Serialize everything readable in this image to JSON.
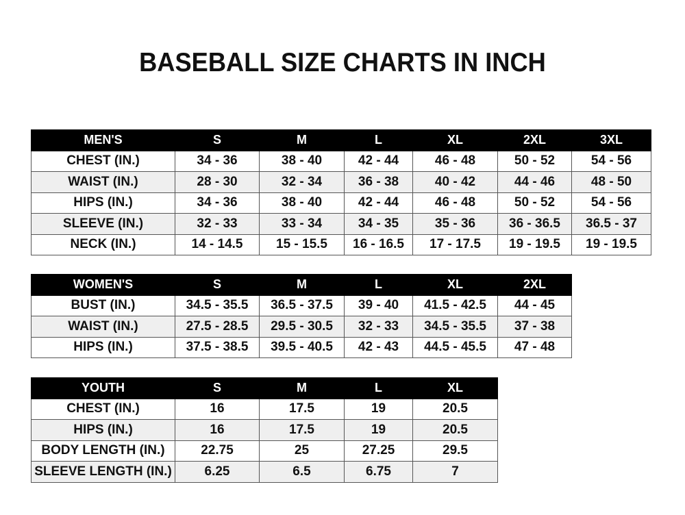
{
  "title": "BASEBALL SIZE CHARTS IN INCH",
  "men": {
    "header": [
      "MEN'S",
      "S",
      "M",
      "L",
      "XL",
      "2XL",
      "3XL"
    ],
    "rows": [
      [
        "CHEST (IN.)",
        "34 - 36",
        "38 - 40",
        "42 - 44",
        "46 - 48",
        "50 - 52",
        "54 - 56"
      ],
      [
        "WAIST (IN.)",
        "28 - 30",
        "32 - 34",
        "36 - 38",
        "40 - 42",
        "44 - 46",
        "48 - 50"
      ],
      [
        "HIPS (IN.)",
        "34 - 36",
        "38 - 40",
        "42 - 44",
        "46 - 48",
        "50 - 52",
        "54 - 56"
      ],
      [
        "SLEEVE (IN.)",
        "32 - 33",
        "33 - 34",
        "34 - 35",
        "35 - 36",
        "36 - 36.5",
        "36.5 - 37"
      ],
      [
        "NECK (IN.)",
        "14 - 14.5",
        "15 - 15.5",
        "16 - 16.5",
        "17 - 17.5",
        "19 - 19.5",
        "19 - 19.5"
      ]
    ]
  },
  "women": {
    "header": [
      "WOMEN'S",
      "S",
      "M",
      "L",
      "XL",
      "2XL"
    ],
    "rows": [
      [
        "BUST (IN.)",
        "34.5 - 35.5",
        "36.5 - 37.5",
        "39 - 40",
        "41.5 - 42.5",
        "44 - 45"
      ],
      [
        "WAIST (IN.)",
        "27.5 - 28.5",
        "29.5 - 30.5",
        "32 - 33",
        "34.5 - 35.5",
        "37 - 38"
      ],
      [
        "HIPS (IN.)",
        "37.5 - 38.5",
        "39.5 - 40.5",
        "42 - 43",
        "44.5 - 45.5",
        "47 - 48"
      ]
    ]
  },
  "youth": {
    "header": [
      "YOUTH",
      "S",
      "M",
      "L",
      "XL"
    ],
    "rows": [
      [
        "CHEST (IN.)",
        "16",
        "17.5",
        "19",
        "20.5"
      ],
      [
        "HIPS (IN.)",
        "16",
        "17.5",
        "19",
        "20.5"
      ],
      [
        "BODY LENGTH (IN.)",
        "22.75",
        "25",
        "27.25",
        "29.5"
      ],
      [
        "SLEEVE LENGTH (IN.)",
        "6.25",
        "6.5",
        "6.75",
        "7"
      ]
    ]
  }
}
